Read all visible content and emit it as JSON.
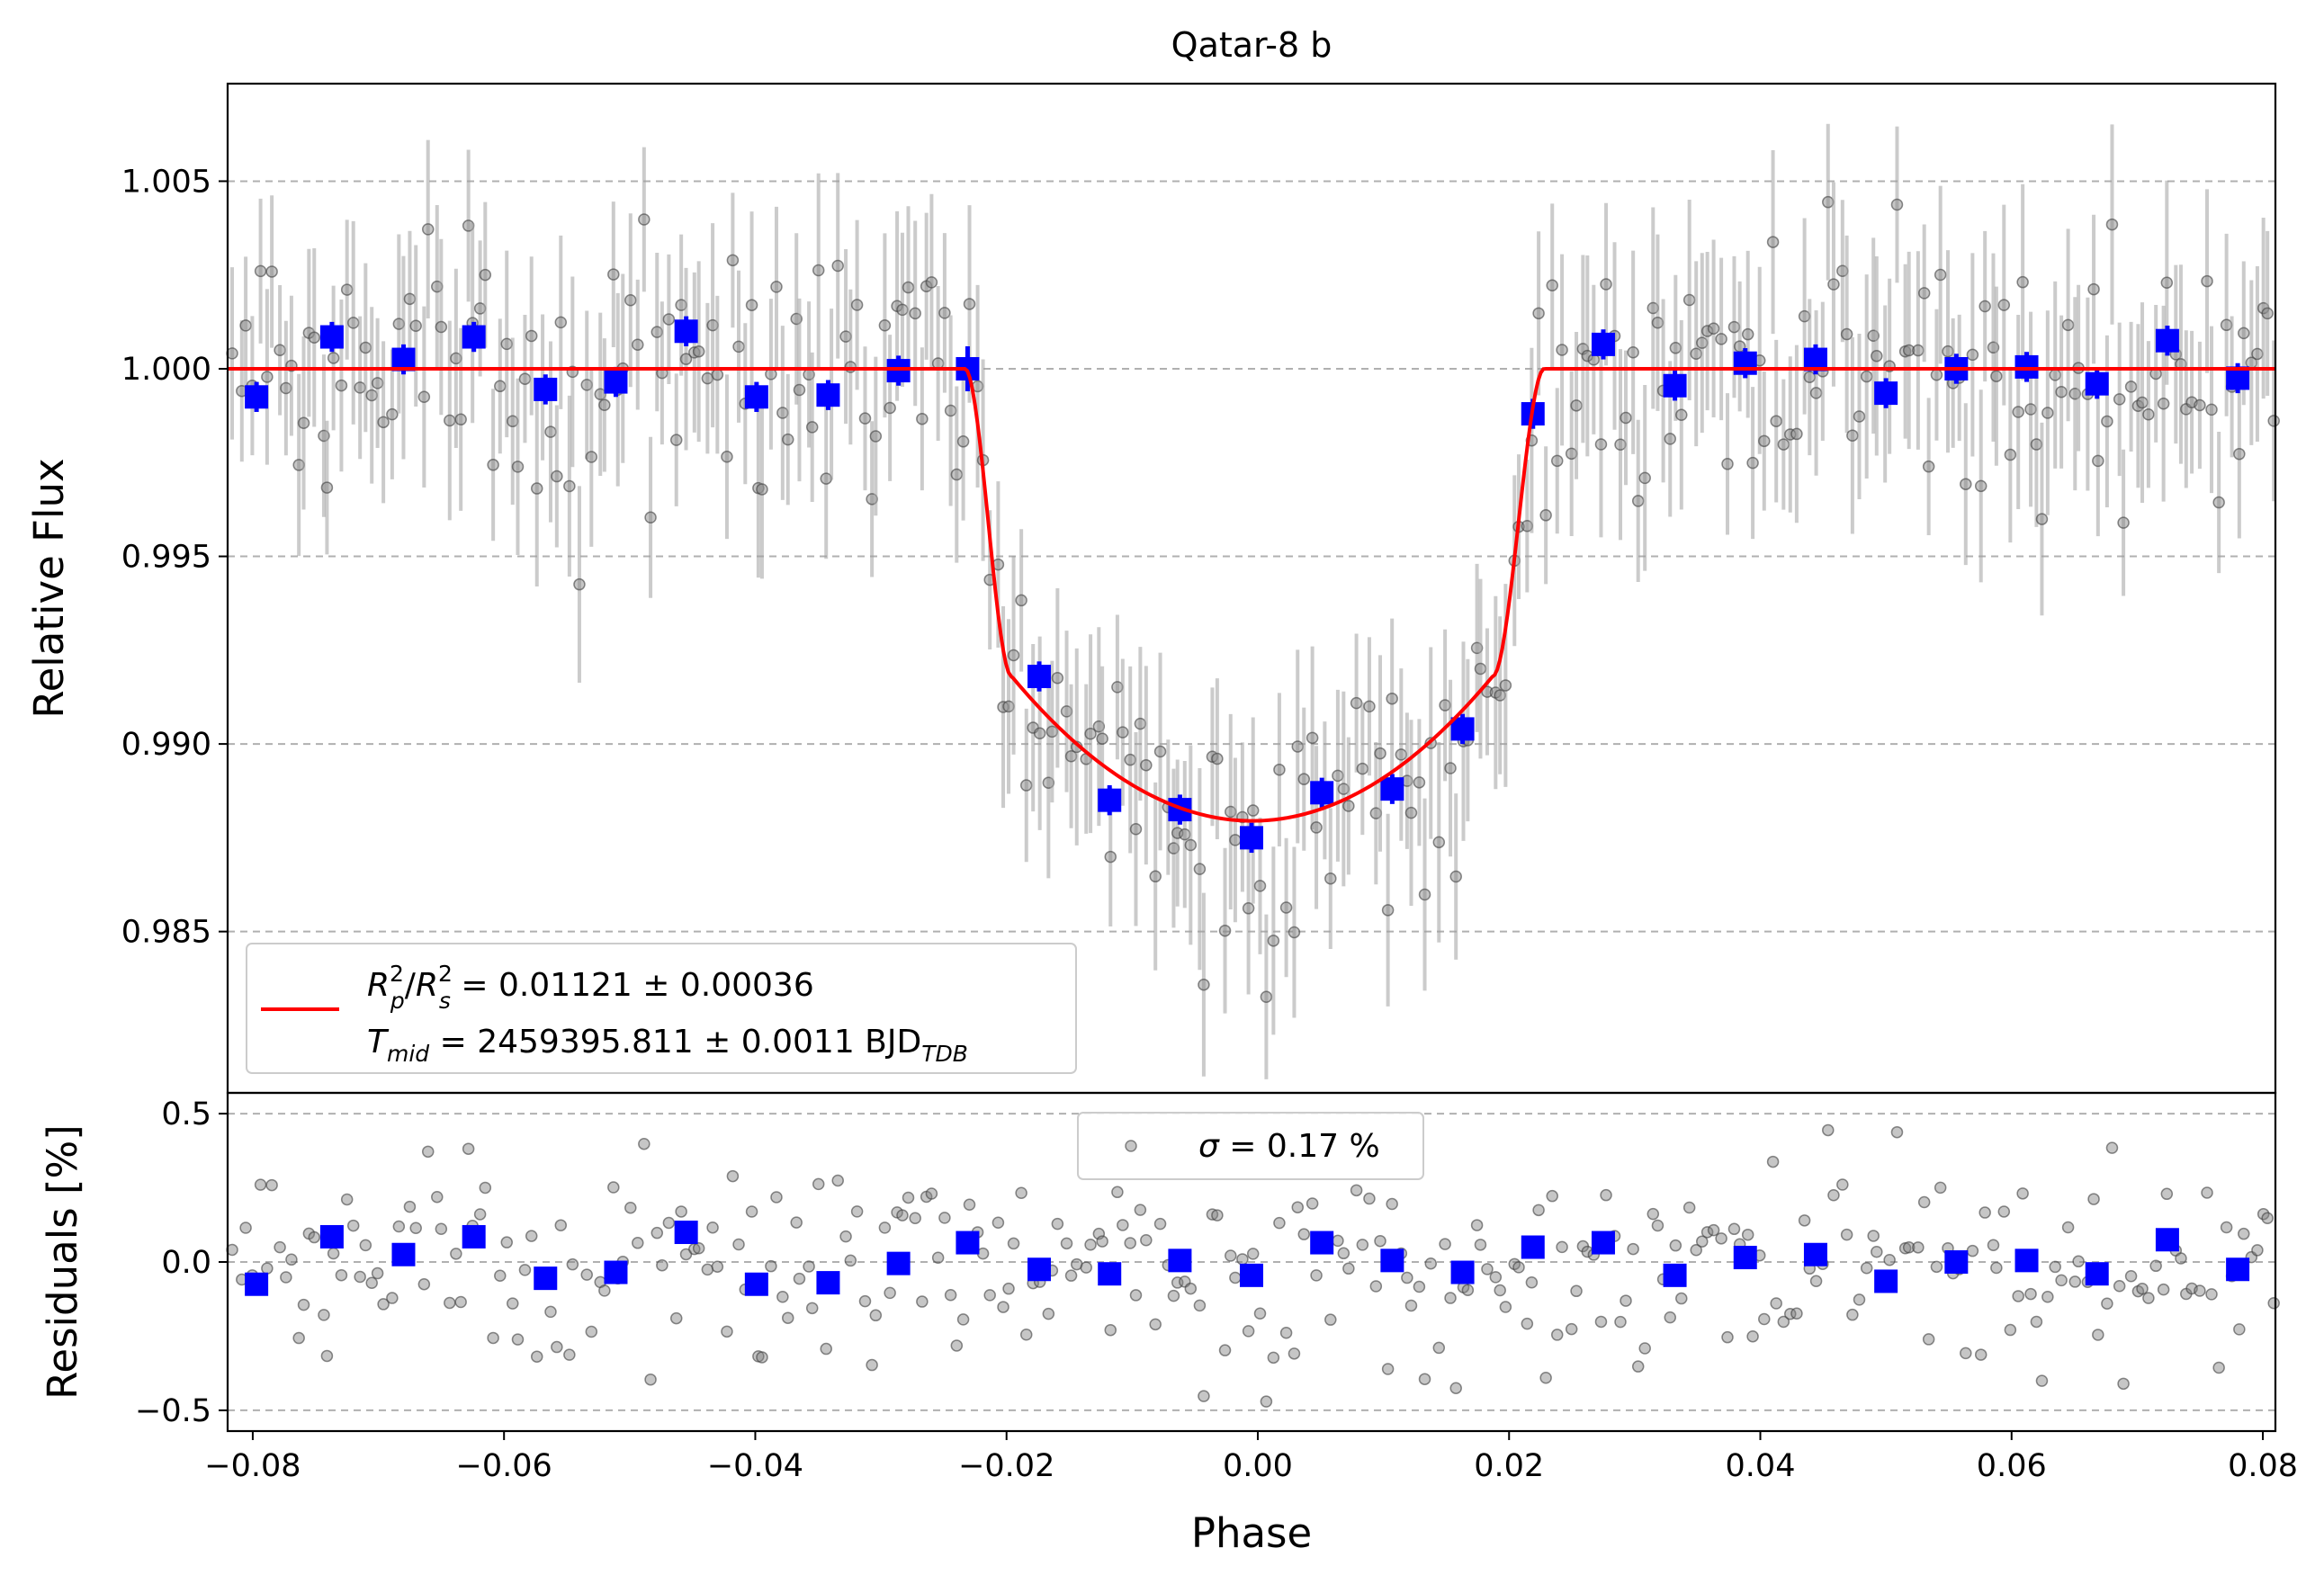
{
  "chart_data": [
    {
      "type": "scatter",
      "title": "Qatar-8 b",
      "xlabel": "",
      "ylabel": "Relative Flux",
      "xlim": [
        -0.082,
        0.081
      ],
      "ylim": [
        0.9807,
        1.0076
      ],
      "xticks": [
        -0.08,
        -0.06,
        -0.04,
        -0.02,
        0.0,
        0.02,
        0.04,
        0.06,
        0.08
      ],
      "xtick_labels": [
        "−0.08",
        "−0.06",
        "−0.04",
        "−0.02",
        "0.00",
        "0.02",
        "0.04",
        "0.06",
        "0.08"
      ],
      "yticks": [
        0.985,
        0.99,
        0.995,
        1.0,
        1.005
      ],
      "ytick_labels": [
        "0.985",
        "0.990",
        "0.995",
        "1.000",
        "1.005"
      ],
      "grid": "horizontal dashed",
      "legend_position": "bottom-left",
      "colors": {
        "raw": "#808080",
        "binned": "#0000ff",
        "model": "#ff0000"
      },
      "model": {
        "name": "transit model",
        "depth": 0.01121,
        "depth_err": 0.00036,
        "t_mid": "2459395.811",
        "t_mid_err": "0.0011",
        "ingress_start": -0.0233,
        "full_start": -0.0196,
        "full_end": 0.0187,
        "egress_end": 0.0228,
        "bottom_flux": 0.98795,
        "flat_flux": 1.0
      },
      "legend": {
        "line1": {
          "lhs_R": "R",
          "lhs_p_sup": "2",
          "lhs_p_sub": "p",
          "slash": "/",
          "lhs_s_sup": "2",
          "lhs_s_sub": "s",
          "value": " = 0.01121 ± 0.00036"
        },
        "line2": {
          "T": "T",
          "T_sub": "mid",
          "value": " = 2459395.811 ± 0.0011 BJD",
          "unit_sub": "TDB"
        }
      },
      "binned_series": {
        "x": [
          -0.0797,
          -0.0737,
          -0.068,
          -0.0624,
          -0.0567,
          -0.0511,
          -0.0455,
          -0.0399,
          -0.0342,
          -0.0286,
          -0.0231,
          -0.0174,
          -0.0118,
          -0.0062,
          -0.0005,
          0.0051,
          0.0107,
          0.0163,
          0.0219,
          0.0275,
          0.0332,
          0.0388,
          0.0444,
          0.05,
          0.0556,
          0.0612,
          0.0668,
          0.0724,
          0.078
        ],
        "y": [
          0.99925,
          1.00085,
          1.00025,
          1.00085,
          0.99945,
          0.99965,
          1.001,
          0.99925,
          0.9993,
          0.99995,
          1.0,
          0.9918,
          0.9885,
          0.98825,
          0.9875,
          0.9887,
          0.9888,
          0.9904,
          0.9988,
          1.00065,
          0.99955,
          1.00015,
          1.00025,
          0.99935,
          1.0,
          1.00005,
          0.9996,
          1.00075,
          0.99975
        ],
        "err": [
          0.0004,
          0.0004,
          0.0004,
          0.0004,
          0.0004,
          0.0004,
          0.0004,
          0.0004,
          0.0004,
          0.0004,
          0.0006,
          0.0004,
          0.0004,
          0.0004,
          0.0004,
          0.0004,
          0.0004,
          0.0004,
          0.0004,
          0.0004,
          0.0004,
          0.0004,
          0.0004,
          0.0004,
          0.0004,
          0.0004,
          0.0004,
          0.0004,
          0.0004
        ]
      },
      "raw_series": {
        "n": 330,
        "point_err": 0.0021,
        "scatter_sigma": 0.0017
      }
    },
    {
      "type": "scatter",
      "title": "",
      "xlabel": "Phase",
      "ylabel": "Residuals [%]",
      "xlim": [
        -0.082,
        0.081
      ],
      "ylim": [
        -0.57,
        0.57
      ],
      "yticks": [
        -0.5,
        0.0,
        0.5
      ],
      "ytick_labels": [
        "−0.5",
        "0.0",
        "0.5"
      ],
      "grid": "horizontal dashed",
      "legend_position": "top-center",
      "legend": {
        "sigma": "σ",
        "value": " = 0.17 %"
      },
      "binned_residuals_percent": [
        -0.075,
        0.085,
        0.025,
        0.085,
        -0.055,
        -0.035,
        0.1,
        -0.075,
        -0.07,
        -0.005,
        0.065,
        -0.025,
        -0.04,
        0.005,
        -0.045,
        0.065,
        0.005,
        -0.035,
        0.05,
        0.065,
        -0.045,
        0.015,
        0.025,
        -0.065,
        0.0,
        0.005,
        -0.04,
        0.075,
        -0.025
      ]
    }
  ]
}
